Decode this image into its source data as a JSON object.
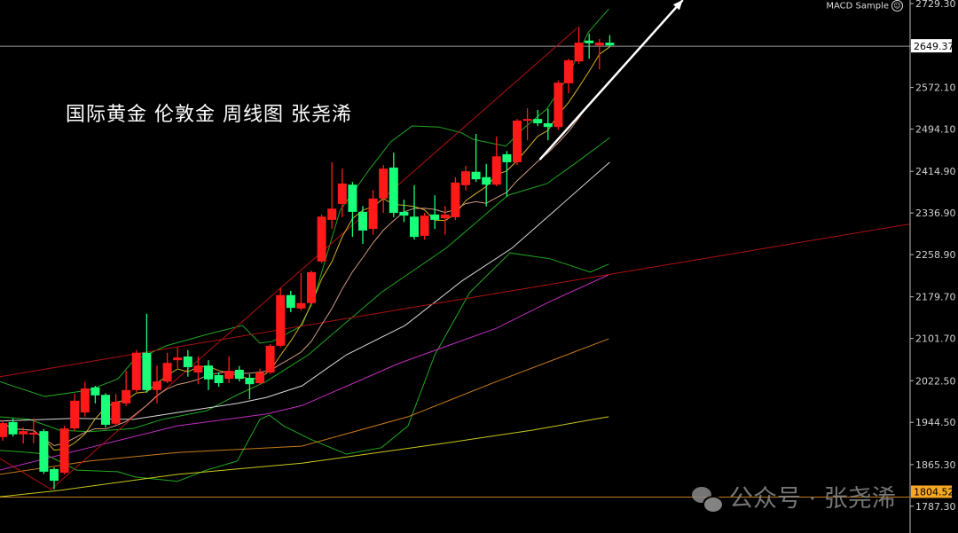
{
  "title_text": "国际黄金 伦敦金 周线图 张尧浠",
  "indicator_label": "MACD Sample",
  "watermark": "公众号 · 张尧浠",
  "colors": {
    "bull": "#ff1a1a",
    "bear": "#19ff7a",
    "background": "#000000",
    "axis_text": "#d0d0d0",
    "band": "#1fa81f",
    "white_ma": "#d8d8d8",
    "magenta_ma": "#c02cc0",
    "orange_ma": "#c87a1a",
    "yellow_ma": "#c8c81e",
    "trend": "#b01010",
    "arrow": "#ffffff",
    "price_line": "#9a9a9a",
    "level_line": "#c07a20",
    "level_label_bg": "#f5a623"
  },
  "chart_data": {
    "type": "candlestick",
    "ylim": [
      1760,
      2735
    ],
    "y_ticks": [
      "2729.30",
      "2649.37",
      "2572.10",
      "2494.10",
      "2414.90",
      "2336.90",
      "2258.90",
      "2179.70",
      "2101.70",
      "2022.50",
      "1944.50",
      "1865.30",
      "1787.30"
    ],
    "current_price": "2649.37",
    "level_price": "1804.52",
    "candles_ohlc": [
      [
        1917,
        1948,
        1910,
        1943
      ],
      [
        1945,
        1952,
        1918,
        1922
      ],
      [
        1922,
        1935,
        1905,
        1928
      ],
      [
        1922,
        1952,
        1905,
        1925
      ],
      [
        1928,
        1932,
        1848,
        1852
      ],
      [
        1857,
        1860,
        1819,
        1835
      ],
      [
        1850,
        1938,
        1847,
        1933
      ],
      [
        1933,
        1998,
        1928,
        1985
      ],
      [
        1963,
        2021,
        1955,
        2008
      ],
      [
        2010,
        2013,
        1980,
        1995
      ],
      [
        1996,
        1999,
        1935,
        1940
      ],
      [
        1942,
        1998,
        1938,
        1983
      ],
      [
        1980,
        2041,
        1975,
        2005
      ],
      [
        2005,
        2080,
        2001,
        2075
      ],
      [
        2075,
        2148,
        2000,
        2005
      ],
      [
        2005,
        2051,
        1980,
        2021
      ],
      [
        2021,
        2075,
        2018,
        2056
      ],
      [
        2061,
        2085,
        2046,
        2066
      ],
      [
        2068,
        2080,
        2030,
        2048
      ],
      [
        2038,
        2068,
        2016,
        2051
      ],
      [
        2051,
        2061,
        2005,
        2025
      ],
      [
        2033,
        2038,
        2011,
        2018
      ],
      [
        2026,
        2068,
        2018,
        2041
      ],
      [
        2043,
        2050,
        2021,
        2026
      ],
      [
        2028,
        2035,
        1988,
        2016
      ],
      [
        2018,
        2045,
        2015,
        2038
      ],
      [
        2038,
        2091,
        2035,
        2088
      ],
      [
        2088,
        2196,
        2085,
        2183
      ],
      [
        2183,
        2191,
        2151,
        2159
      ],
      [
        2158,
        2224,
        2154,
        2168
      ],
      [
        2168,
        2229,
        2165,
        2226
      ],
      [
        2246,
        2334,
        2243,
        2330
      ],
      [
        2324,
        2432,
        2307,
        2345
      ],
      [
        2354,
        2420,
        2329,
        2392
      ],
      [
        2390,
        2395,
        2292,
        2339
      ],
      [
        2339,
        2350,
        2279,
        2304
      ],
      [
        2307,
        2380,
        2296,
        2364
      ],
      [
        2364,
        2427,
        2337,
        2420
      ],
      [
        2422,
        2450,
        2329,
        2337
      ],
      [
        2339,
        2362,
        2320,
        2332
      ],
      [
        2330,
        2389,
        2287,
        2292
      ],
      [
        2294,
        2337,
        2287,
        2332
      ],
      [
        2334,
        2370,
        2307,
        2324
      ],
      [
        2327,
        2350,
        2296,
        2334
      ],
      [
        2329,
        2404,
        2324,
        2394
      ],
      [
        2389,
        2425,
        2379,
        2415
      ],
      [
        2414,
        2485,
        2395,
        2400
      ],
      [
        2404,
        2429,
        2349,
        2390
      ],
      [
        2390,
        2480,
        2387,
        2443
      ],
      [
        2447,
        2453,
        2367,
        2432
      ],
      [
        2432,
        2513,
        2427,
        2510
      ],
      [
        2510,
        2533,
        2473,
        2513
      ],
      [
        2513,
        2530,
        2500,
        2505
      ],
      [
        2505,
        2532,
        2473,
        2498
      ],
      [
        2498,
        2585,
        2493,
        2581
      ],
      [
        2580,
        2626,
        2561,
        2623
      ],
      [
        2621,
        2686,
        2616,
        2656
      ],
      [
        2660,
        2673,
        2626,
        2655
      ],
      [
        2651,
        2663,
        2606,
        2656
      ],
      [
        2656,
        2670,
        2648,
        2651
      ]
    ],
    "overlays": [
      {
        "kind": "upper-band",
        "color": "band",
        "points": [
          [
            -0.3,
            2021
          ],
          [
            4.1,
            1993
          ],
          [
            8.4,
            2005
          ],
          [
            11.2,
            2026
          ],
          [
            12.7,
            2060
          ],
          [
            15.9,
            2088
          ],
          [
            19.8,
            2109
          ],
          [
            23.3,
            2126
          ],
          [
            25.0,
            2093
          ],
          [
            26.2,
            2096
          ],
          [
            29.1,
            2126
          ],
          [
            30.5,
            2193
          ],
          [
            32.8,
            2342
          ],
          [
            35.7,
            2420
          ],
          [
            37.7,
            2470
          ],
          [
            39.8,
            2500
          ],
          [
            42.4,
            2498
          ],
          [
            44.6,
            2487
          ],
          [
            45.7,
            2475
          ],
          [
            48.9,
            2462
          ],
          [
            50.6,
            2495
          ],
          [
            52.9,
            2532
          ],
          [
            54.9,
            2591
          ],
          [
            56.9,
            2675
          ],
          [
            58.9,
            2719
          ]
        ]
      },
      {
        "kind": "middle-band",
        "color": "band",
        "points": [
          [
            -0.3,
            1955
          ],
          [
            2.6,
            1950
          ],
          [
            5.5,
            1930
          ],
          [
            8.4,
            1927
          ],
          [
            12.7,
            1933
          ],
          [
            15.5,
            1950
          ],
          [
            19.8,
            1966
          ],
          [
            22.8,
            1996
          ],
          [
            25.6,
            2021
          ],
          [
            29.7,
            2071
          ],
          [
            36.8,
            2188
          ],
          [
            43.1,
            2271
          ],
          [
            49.1,
            2370
          ],
          [
            52.9,
            2392
          ],
          [
            55.8,
            2432
          ],
          [
            59.0,
            2478
          ]
        ]
      },
      {
        "kind": "lower-band",
        "color": "band",
        "points": [
          [
            -0.3,
            1892
          ],
          [
            2.6,
            1888
          ],
          [
            4.1,
            1885
          ],
          [
            7.2,
            1855
          ],
          [
            11.2,
            1852
          ],
          [
            12.9,
            1842
          ],
          [
            17.0,
            1834
          ],
          [
            19.8,
            1855
          ],
          [
            22.8,
            1872
          ],
          [
            25.0,
            1950
          ],
          [
            25.9,
            1958
          ],
          [
            27.3,
            1938
          ],
          [
            29.9,
            1913
          ],
          [
            33.4,
            1885
          ],
          [
            36.8,
            1897
          ],
          [
            39.4,
            1938
          ],
          [
            42.0,
            2071
          ],
          [
            45.4,
            2188
          ],
          [
            49.3,
            2262
          ],
          [
            53.2,
            2251
          ],
          [
            57.1,
            2226
          ],
          [
            58.9,
            2241
          ]
        ]
      },
      {
        "kind": "ma",
        "color": "white_ma",
        "points": [
          [
            -0.3,
            1947
          ],
          [
            6.9,
            1952
          ],
          [
            12.7,
            1950
          ],
          [
            17.0,
            1963
          ],
          [
            22.8,
            1980
          ],
          [
            25.6,
            1991
          ],
          [
            29.1,
            2013
          ],
          [
            33.4,
            2071
          ],
          [
            39.1,
            2126
          ],
          [
            44.6,
            2209
          ],
          [
            49.5,
            2271
          ],
          [
            53.4,
            2337
          ],
          [
            59.0,
            2432
          ]
        ]
      },
      {
        "kind": "ma",
        "color": "magenta_ma",
        "points": [
          [
            -0.3,
            1855
          ],
          [
            8.4,
            1897
          ],
          [
            17.0,
            1938
          ],
          [
            25.6,
            1960
          ],
          [
            29.1,
            1976
          ],
          [
            38.5,
            2055
          ],
          [
            48.0,
            2121
          ],
          [
            53.2,
            2171
          ],
          [
            58.9,
            2221
          ]
        ]
      },
      {
        "kind": "ma",
        "color": "orange_ma",
        "points": [
          [
            -0.3,
            1847
          ],
          [
            8.4,
            1872
          ],
          [
            17.0,
            1888
          ],
          [
            29.1,
            1900
          ],
          [
            39.4,
            1955
          ],
          [
            48.0,
            2021
          ],
          [
            58.9,
            2101
          ]
        ]
      },
      {
        "kind": "ma",
        "color": "yellow_ma",
        "points": [
          [
            -0.3,
            1805
          ],
          [
            5.5,
            1817
          ],
          [
            17.0,
            1847
          ],
          [
            29.1,
            1868
          ],
          [
            42.8,
            1905
          ],
          [
            51.5,
            1930
          ],
          [
            58.9,
            1955
          ]
        ]
      },
      {
        "kind": "trendline",
        "color": "trend",
        "points": [
          [
            -0.3,
            2030
          ],
          [
            88.1,
            2316
          ]
        ]
      },
      {
        "kind": "trendline",
        "color": "trend",
        "points": [
          [
            -0.3,
            1877
          ],
          [
            4.7,
            1819
          ],
          [
            55.8,
            2683
          ]
        ]
      }
    ],
    "arrow": {
      "from": [
        52.2,
        2437
      ],
      "to": [
        66.1,
        2736
      ]
    }
  }
}
